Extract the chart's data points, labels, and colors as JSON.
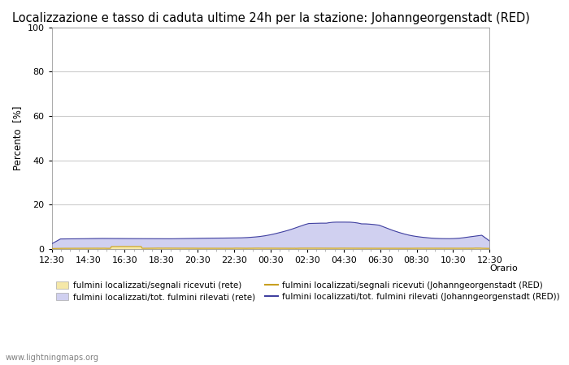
{
  "title": "Localizzazione e tasso di caduta ultime 24h per la stazione: Johanngeorgenstadt (RED)",
  "ylabel": "Percento  [%]",
  "xlim": [
    0,
    24
  ],
  "ylim": [
    0,
    100
  ],
  "yticks": [
    0,
    20,
    40,
    60,
    80,
    100
  ],
  "xtick_labels": [
    "12:30",
    "14:30",
    "16:30",
    "18:30",
    "20:30",
    "22:30",
    "00:30",
    "02:30",
    "04:30",
    "06:30",
    "08:30",
    "10:30",
    "12:30"
  ],
  "background_color": "#ffffff",
  "plot_background": "#ffffff",
  "grid_color": "#cccccc",
  "watermark": "www.lightningmaps.org",
  "fill_color_yellow": "#f5e8a8",
  "fill_color_blue": "#d0d0f0",
  "line_color_yellow": "#c8a020",
  "line_color_blue": "#4040a0",
  "title_fontsize": 10.5,
  "tick_fontsize": 8,
  "legend_fontsize": 7.5,
  "watermark_fontsize": 7,
  "legend_label_1": "fulmini localizzati/segnali ricevuti (rete)",
  "legend_label_2": "fulmini localizzati/segnali ricevuti (Johanngeorgenstadt (RED)",
  "legend_label_3": "fulmini localizzati/tot. fulmini rilevati (rete)",
  "legend_label_4": "fulmini localizzati/tot. fulmini rilevati (Johanngeorgenstadt (RED))",
  "orario_label": "Orario"
}
